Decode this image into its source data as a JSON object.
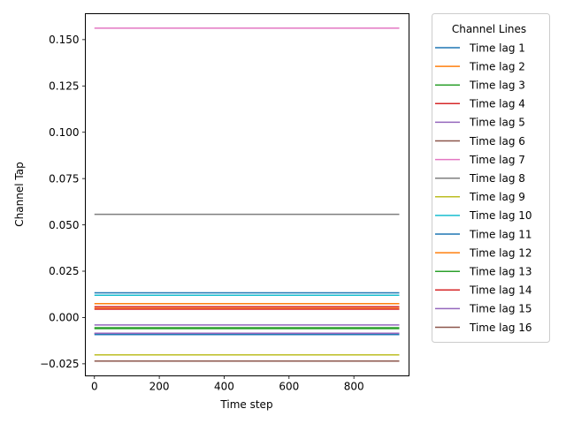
{
  "chart_data": {
    "type": "line",
    "title": "",
    "xlabel": "Time step",
    "ylabel": "Channel Tap",
    "xlim": [
      -28,
      970
    ],
    "ylim": [
      -0.0315,
      0.164
    ],
    "x_range": [
      0,
      940
    ],
    "xticks": [
      0,
      200,
      400,
      600,
      800
    ],
    "xtick_labels": [
      "0",
      "200",
      "400",
      "600",
      "800"
    ],
    "yticks": [
      -0.025,
      0.0,
      0.025,
      0.05,
      0.075,
      0.1,
      0.125,
      0.15
    ],
    "ytick_labels": [
      "−0.025",
      "0.000",
      "0.025",
      "0.050",
      "0.075",
      "0.100",
      "0.125",
      "0.150"
    ],
    "grid": false,
    "legend": {
      "title": "Channel Lines",
      "placement": "outside-right"
    },
    "series": [
      {
        "name": "Time lag 1",
        "value": 0.0133,
        "color": "#1f77b4"
      },
      {
        "name": "Time lag 2",
        "value": 0.0075,
        "color": "#ff7f0e"
      },
      {
        "name": "Time lag 3",
        "value": -0.0055,
        "color": "#2ca02c"
      },
      {
        "name": "Time lag 4",
        "value": 0.0058,
        "color": "#d62728"
      },
      {
        "name": "Time lag 5",
        "value": -0.004,
        "color": "#9467bd"
      },
      {
        "name": "Time lag 6",
        "value": -0.0087,
        "color": "#8c564b"
      },
      {
        "name": "Time lag 7",
        "value": 0.1562,
        "color": "#e377c2"
      },
      {
        "name": "Time lag 8",
        "value": 0.0557,
        "color": "#7f7f7f"
      },
      {
        "name": "Time lag 9",
        "value": -0.0202,
        "color": "#bcbd22"
      },
      {
        "name": "Time lag 10",
        "value": 0.012,
        "color": "#17becf"
      },
      {
        "name": "Time lag 11",
        "value": -0.0092,
        "color": "#1f77b4"
      },
      {
        "name": "Time lag 12",
        "value": 0.005,
        "color": "#ff7f0e"
      },
      {
        "name": "Time lag 13",
        "value": -0.006,
        "color": "#2ca02c"
      },
      {
        "name": "Time lag 14",
        "value": 0.0045,
        "color": "#d62728"
      },
      {
        "name": "Time lag 15",
        "value": -0.0085,
        "color": "#9467bd"
      },
      {
        "name": "Time lag 16",
        "value": -0.0235,
        "color": "#8c564b"
      }
    ]
  }
}
